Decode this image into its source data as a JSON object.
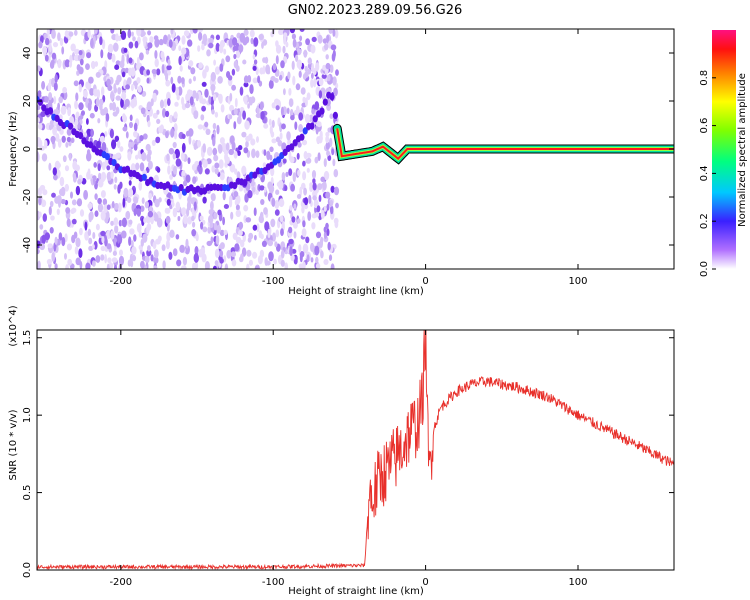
{
  "figure": {
    "title": "GN02.2023.289.09.56.G26"
  },
  "chart_data": [
    {
      "type": "heatmap",
      "title": "GN02.2023.289.09.56.G26",
      "xlabel": "Height of straight line (km)",
      "ylabel": "Frequency (Hz)",
      "xlim": [
        -255,
        163
      ],
      "ylim": [
        -50,
        50
      ],
      "xticks": [
        -200,
        -100,
        0,
        100
      ],
      "yticks": [
        -40,
        -20,
        0,
        20,
        40
      ],
      "grid": false,
      "colorbar": {
        "label": "Normalized spectral amplitude",
        "range": [
          0.0,
          1.0
        ],
        "ticks": [
          0.0,
          0.2,
          0.4,
          0.6,
          0.8
        ],
        "colormap": [
          "#ffffff",
          "#7b2ff7",
          "#2020ff",
          "#00c8ff",
          "#00ff80",
          "#80ff00",
          "#ffff00",
          "#ff8000",
          "#ff0000",
          "#ff0080"
        ]
      },
      "trace": {
        "x": [
          -255,
          -240,
          -220,
          -200,
          -180,
          -160,
          -140,
          -120,
          -100,
          -90,
          -80,
          -70,
          -62,
          -55,
          -45,
          -35,
          -28,
          -22,
          -18,
          -12,
          -6,
          0,
          50,
          100,
          163
        ],
        "y": [
          20,
          12,
          2,
          -8,
          -14,
          -17,
          -17,
          -14,
          -6,
          0,
          6,
          14,
          24,
          -3,
          -2,
          -1,
          1,
          -2,
          -4,
          0,
          0,
          0,
          0,
          0,
          0
        ]
      },
      "noise_region_x": [
        -255,
        -58
      ]
    },
    {
      "type": "line",
      "title": "",
      "xlabel": "Height of straight line (km)",
      "ylabel": "SNR (10 * v/v)",
      "y_multiplier": "(x10^4)",
      "xlim": [
        -255,
        163
      ],
      "ylim": [
        0.0,
        1.55
      ],
      "xticks": [
        -200,
        -100,
        0,
        100
      ],
      "yticks": [
        0.0,
        0.5,
        1.0,
        1.5
      ],
      "grid": false,
      "series": [
        {
          "name": "",
          "color": "#e8302b",
          "x": [
            -255,
            -200,
            -100,
            -40,
            -37,
            -35,
            -30,
            -25,
            -20,
            -15,
            -10,
            -5,
            -2,
            0,
            2,
            5,
            10,
            20,
            30,
            40,
            60,
            80,
            100,
            120,
            140,
            163
          ],
          "y": [
            0.02,
            0.02,
            0.02,
            0.03,
            0.5,
            0.45,
            0.6,
            0.65,
            0.72,
            0.8,
            0.9,
            0.95,
            1.1,
            1.55,
            0.6,
            0.9,
            1.05,
            1.15,
            1.2,
            1.22,
            1.18,
            1.12,
            1.0,
            0.9,
            0.8,
            0.68
          ]
        }
      ]
    }
  ]
}
